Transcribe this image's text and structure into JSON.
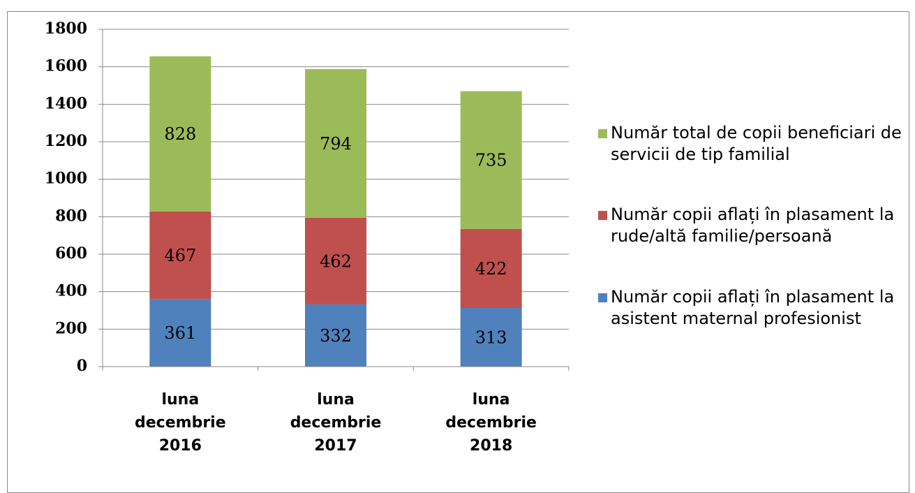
{
  "chart_data": {
    "type": "bar",
    "stacked": true,
    "categories": [
      "luna decembrie 2016",
      "luna decembrie 2017",
      "luna decembrie 2018"
    ],
    "series": [
      {
        "name": "Număr copii aflați în plasament la asistent maternal profesionist",
        "color": "#4f81bd",
        "values": [
          361,
          332,
          313
        ]
      },
      {
        "name": "Număr copii aflați în plasament la rude/altă familie/persoană",
        "color": "#c0504d",
        "values": [
          467,
          462,
          422
        ]
      },
      {
        "name": "Număr total de copii beneficiari de servicii de tip familial",
        "color": "#9bbb59",
        "values": [
          828,
          794,
          735
        ]
      }
    ],
    "ylim": [
      0,
      1800
    ],
    "yticks": [
      0,
      200,
      400,
      600,
      800,
      1000,
      1200,
      1400,
      1600,
      1800
    ],
    "grid": true,
    "legend": "right"
  }
}
